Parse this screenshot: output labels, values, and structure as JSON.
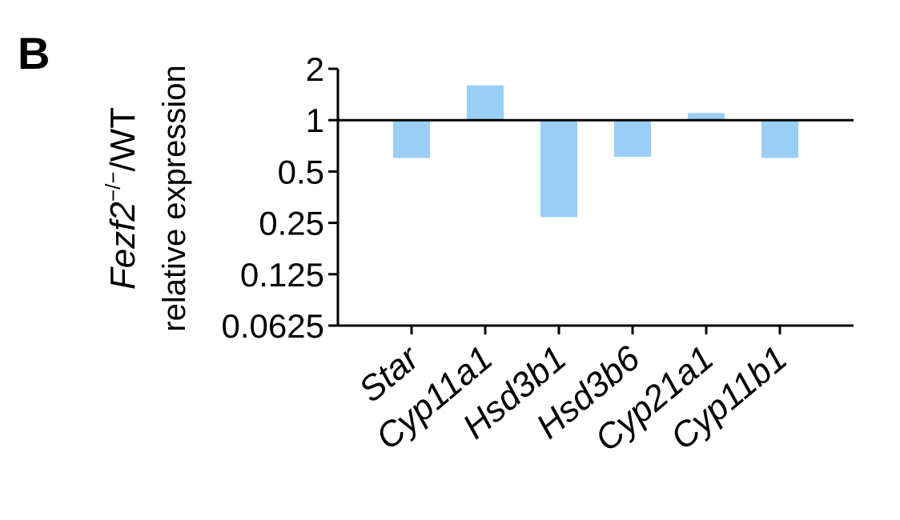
{
  "panel_label": "B",
  "chart_data": {
    "type": "bar",
    "scale": "log2",
    "baseline": 1,
    "ylabel_gene": "Fezf2",
    "ylabel_genotype_sup": "−/−",
    "ylabel_ratio": "/WT",
    "ylabel_line2": "relative expression",
    "yticks": [
      {
        "value": 2,
        "label": "2"
      },
      {
        "value": 1,
        "label": "1"
      },
      {
        "value": 0.5,
        "label": "0.5"
      },
      {
        "value": 0.25,
        "label": "0.25"
      },
      {
        "value": 0.125,
        "label": "0.125"
      },
      {
        "value": 0.0625,
        "label": "0.0625"
      }
    ],
    "ylim": [
      0.0625,
      2
    ],
    "categories": [
      "Star",
      "Cyp11a1",
      "Hsd3b1",
      "Hsd3b6",
      "Cyp21a1",
      "Cyp11b1"
    ],
    "values": [
      0.6,
      1.6,
      0.27,
      0.61,
      1.1,
      0.6
    ],
    "bar_color": "#99cff5",
    "axis_color": "#000000",
    "grid": false,
    "legend": "none"
  }
}
